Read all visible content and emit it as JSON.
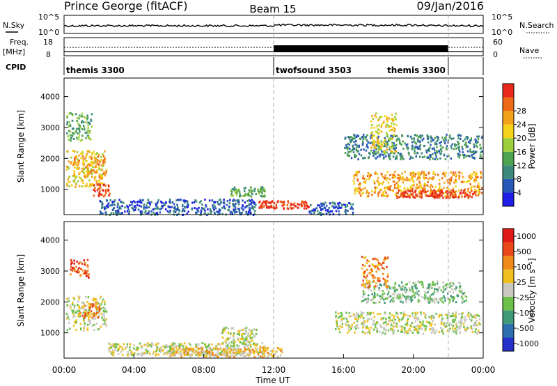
{
  "header": {
    "station": "Prince George (fitACF)",
    "beam": "Beam 15",
    "date": "09/Jan/2016"
  },
  "labels": {
    "nsky": "N.Sky",
    "nsearch": "N.Search",
    "freq": "Freq.",
    "freq_unit": "[MHz]",
    "nave": "Nave",
    "cpid": "CPID",
    "slant_range": "Slant Range [km]",
    "power_axis": "Power [dB]",
    "velocity_axis": "Velocity [m s⁻¹]",
    "time_axis": "Time UT"
  },
  "noise_panel": {
    "left_ticks": [
      "10^5",
      "10^0"
    ],
    "right_ticks": [
      "10^5",
      "10^0"
    ]
  },
  "freq_panel": {
    "left_ticks": [
      "18",
      "8"
    ],
    "right_ticks": [
      "60",
      "0"
    ]
  },
  "cpid_segments": [
    {
      "name": "themis 3300",
      "start_hour": 0,
      "end_hour": 12
    },
    {
      "name": "twofsound 3503",
      "start_hour": 12,
      "end_hour": 22
    },
    {
      "name": "themis 3300",
      "start_hour": 22,
      "end_hour": 24
    }
  ],
  "x_ticks": [
    "00:00",
    "04:00",
    "08:00",
    "12:00",
    "16:00",
    "20:00",
    "00:00"
  ],
  "y_ticks": [
    "1000",
    "2000",
    "3000",
    "4000"
  ],
  "power_scale": {
    "ticks": [
      "4",
      "8",
      "12",
      "16",
      "20",
      "24",
      "28"
    ],
    "colors": [
      "#1e1ee6",
      "#2a58b8",
      "#3d8a7a",
      "#4fa24f",
      "#9ccf3c",
      "#f5d21a",
      "#f2a21a",
      "#ee6a18",
      "#e8281a"
    ]
  },
  "velocity_scale": {
    "ticks": [
      "1000",
      "500",
      "100",
      "25",
      "-25",
      "-100",
      "-500",
      "-1000"
    ],
    "colors": [
      "#2430c8",
      "#2d6fb0",
      "#3f9a78",
      "#6cc04a",
      "#c8c8c0",
      "#f0c020",
      "#f08a18",
      "#ea4818",
      "#e01818"
    ]
  },
  "chart_data": {
    "type": "heatmap",
    "x_range_hours": [
      0,
      24
    ],
    "y_range_km": [
      180,
      4600
    ],
    "reference_lines_hours": [
      12,
      22
    ],
    "power_regions": [
      {
        "t0": 0.1,
        "t1": 1.6,
        "r0": 2600,
        "r1": 3500,
        "level": 3
      },
      {
        "t0": 0.1,
        "t1": 2.3,
        "r0": 1100,
        "r1": 2300,
        "level": 5
      },
      {
        "t0": 1.6,
        "t1": 2.6,
        "r0": 800,
        "r1": 1200,
        "level": 8
      },
      {
        "t0": 0.5,
        "t1": 2.4,
        "r0": 1400,
        "r1": 2100,
        "level": 6
      },
      {
        "t0": 2.0,
        "t1": 11.0,
        "r0": 200,
        "r1": 700,
        "level": 1
      },
      {
        "t0": 9.5,
        "t1": 11.5,
        "r0": 800,
        "r1": 1100,
        "level": 3
      },
      {
        "t0": 11.0,
        "t1": 14.0,
        "r0": 400,
        "r1": 650,
        "level": 8
      },
      {
        "t0": 14.0,
        "t1": 16.5,
        "r0": 200,
        "r1": 600,
        "level": 1
      },
      {
        "t0": 16.0,
        "t1": 24.0,
        "r0": 2000,
        "r1": 2800,
        "level": 2
      },
      {
        "t0": 16.5,
        "t1": 24.0,
        "r0": 800,
        "r1": 1600,
        "level": 6
      },
      {
        "t0": 19.0,
        "t1": 23.5,
        "r0": 750,
        "r1": 1000,
        "level": 8
      },
      {
        "t0": 17.5,
        "t1": 19.0,
        "r0": 2200,
        "r1": 3500,
        "level": 5
      }
    ],
    "velocity_regions": [
      {
        "t0": 0.3,
        "t1": 1.4,
        "r0": 2800,
        "r1": 3400,
        "level": 7
      },
      {
        "t0": 0.1,
        "t1": 2.4,
        "r0": 1100,
        "r1": 2200,
        "level": 4
      },
      {
        "t0": 0.8,
        "t1": 2.0,
        "r0": 1500,
        "r1": 2000,
        "level": 6
      },
      {
        "t0": 2.5,
        "t1": 11.5,
        "r0": 300,
        "r1": 700,
        "level": 4
      },
      {
        "t0": 6.0,
        "t1": 12.5,
        "r0": 250,
        "r1": 550,
        "level": 5
      },
      {
        "t0": 9.0,
        "t1": 11.0,
        "r0": 700,
        "r1": 1200,
        "level": 4
      },
      {
        "t0": 15.5,
        "t1": 23.8,
        "r0": 1000,
        "r1": 1700,
        "level": 4
      },
      {
        "t0": 17.0,
        "t1": 23.0,
        "r0": 2000,
        "r1": 2700,
        "level": 3
      },
      {
        "t0": 17.0,
        "t1": 18.5,
        "r0": 2500,
        "r1": 3500,
        "level": 6
      }
    ]
  }
}
